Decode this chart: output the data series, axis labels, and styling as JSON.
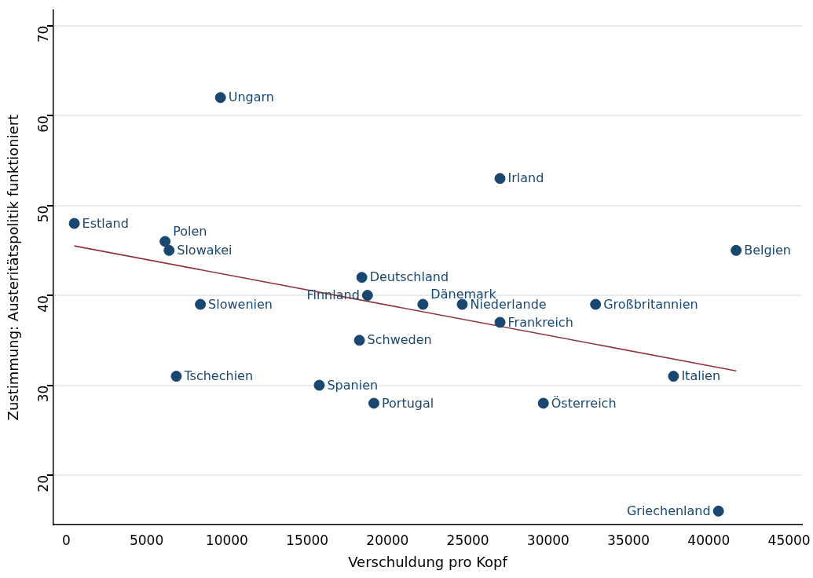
{
  "chart_data": {
    "type": "scatter",
    "xlabel": "Verschuldung pro Kopf",
    "ylabel": "Zustimmung: Austeritätspolitik funktioniert",
    "xlim": [
      -800,
      45800
    ],
    "ylim": [
      14.5,
      71.7
    ],
    "xticks": [
      0,
      5000,
      10000,
      15000,
      20000,
      25000,
      30000,
      35000,
      40000,
      45000
    ],
    "yticks": [
      20,
      30,
      40,
      50,
      60,
      70
    ],
    "grid": "y",
    "series": [
      {
        "marker": "circle",
        "color": "#1a476f",
        "x": [
          9600,
          27000,
          500,
          6150,
          6400,
          41700,
          18400,
          18750,
          22200,
          24650,
          8350,
          32950,
          27000,
          18250,
          6850,
          37800,
          15750,
          19150,
          29700,
          40600
        ],
        "values": [
          62,
          53,
          48,
          46,
          45,
          45,
          42,
          40,
          39,
          39,
          39,
          39,
          37,
          35,
          31,
          31,
          30,
          28,
          28,
          16
        ]
      },
      {
        "type": "line",
        "marker": "none",
        "color": "#90353b",
        "x": [
          500,
          41700
        ],
        "values": [
          45.5,
          31.6
        ]
      }
    ],
    "annotations": [
      {
        "text": "Ungarn",
        "x": 9600,
        "y": 62
      },
      {
        "text": "Irland",
        "x": 27000,
        "y": 53
      },
      {
        "text": "Estland",
        "x": 500,
        "y": 48
      },
      {
        "text": "Polen",
        "x": 6150,
        "y": 46
      },
      {
        "text": "Slowakei",
        "x": 6400,
        "y": 45
      },
      {
        "text": "Belgien",
        "x": 41700,
        "y": 45
      },
      {
        "text": "Deutschland",
        "x": 18400,
        "y": 42
      },
      {
        "text": "Finnland",
        "x": 18750,
        "y": 40
      },
      {
        "text": "Dänemark",
        "x": 22200,
        "y": 39
      },
      {
        "text": "Niederlande",
        "x": 24650,
        "y": 39
      },
      {
        "text": "Slowenien",
        "x": 8350,
        "y": 39
      },
      {
        "text": "Großbritannien",
        "x": 32950,
        "y": 39
      },
      {
        "text": "Frankreich",
        "x": 27000,
        "y": 37
      },
      {
        "text": "Schweden",
        "x": 18250,
        "y": 35
      },
      {
        "text": "Tschechien",
        "x": 6850,
        "y": 31
      },
      {
        "text": "Italien",
        "x": 37800,
        "y": 31
      },
      {
        "text": "Spanien",
        "x": 15750,
        "y": 30
      },
      {
        "text": "Portugal",
        "x": 19150,
        "y": 28
      },
      {
        "text": "Österreich",
        "x": 29700,
        "y": 28
      },
      {
        "text": "Griechenland",
        "x": 40600,
        "y": 16
      }
    ]
  }
}
